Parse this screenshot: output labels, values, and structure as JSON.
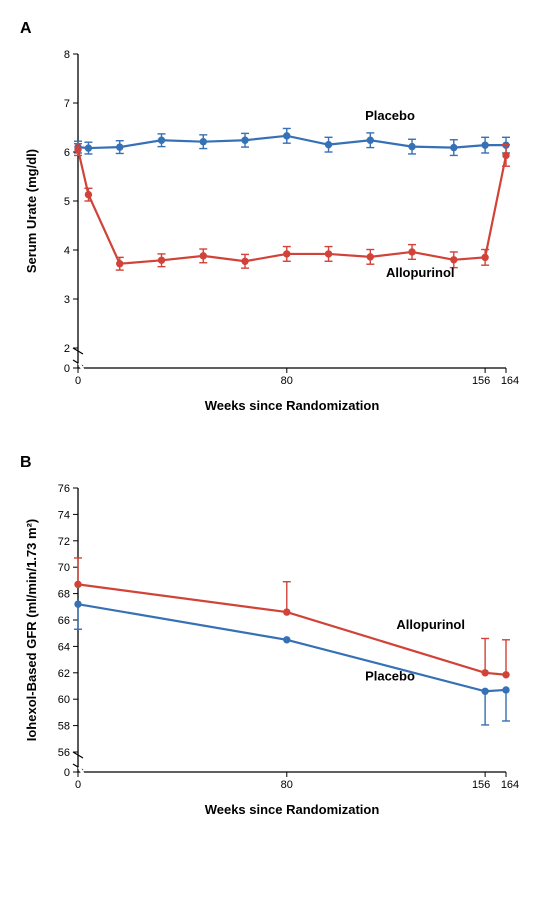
{
  "panelA": {
    "label": "A",
    "type": "line",
    "xlabel": "Weeks since Randomization",
    "ylabel": "Serum Urate (mg/dl)",
    "xlim": [
      0,
      164
    ],
    "ylim_broken": true,
    "y_break_from": 0,
    "y_break_to": 2,
    "ymax": 8,
    "xticks": [
      0,
      80,
      156,
      164
    ],
    "yticks": [
      0,
      2,
      3,
      4,
      5,
      6,
      7,
      8
    ],
    "background_color": "#ffffff",
    "axis_color": "#000000",
    "line_width": 2.2,
    "marker_radius": 3.2,
    "series": [
      {
        "name": "Placebo",
        "color": "#3670b5",
        "label_pos": {
          "x": 110,
          "y": 6.65
        },
        "x": [
          0,
          4,
          16,
          32,
          48,
          64,
          80,
          96,
          112,
          128,
          144,
          156,
          164
        ],
        "y": [
          6.1,
          6.08,
          6.1,
          6.24,
          6.21,
          6.24,
          6.33,
          6.15,
          6.24,
          6.11,
          6.09,
          6.14,
          6.14
        ],
        "err": [
          0.12,
          0.12,
          0.13,
          0.13,
          0.14,
          0.14,
          0.15,
          0.15,
          0.15,
          0.15,
          0.16,
          0.16,
          0.16
        ]
      },
      {
        "name": "Allopurinol",
        "color": "#d14338",
        "label_pos": {
          "x": 118,
          "y": 3.45
        },
        "x": [
          0,
          4,
          16,
          32,
          48,
          64,
          80,
          96,
          112,
          128,
          144,
          156,
          164
        ],
        "y": [
          6.05,
          5.13,
          3.72,
          3.79,
          3.88,
          3.77,
          3.92,
          3.92,
          3.86,
          3.96,
          3.8,
          3.85,
          5.93
        ],
        "err": [
          0.12,
          0.13,
          0.13,
          0.13,
          0.14,
          0.14,
          0.15,
          0.15,
          0.15,
          0.15,
          0.16,
          0.16,
          0.22
        ]
      }
    ]
  },
  "panelB": {
    "label": "B",
    "type": "line",
    "xlabel": "Weeks since Randomization",
    "ylabel": "Iohexol-Based GFR (ml/min/1.73 m²)",
    "xlim": [
      0,
      164
    ],
    "ylim_broken": true,
    "y_break_from": 0,
    "y_break_to": 56,
    "ymax": 76,
    "xticks": [
      0,
      80,
      156,
      164
    ],
    "yticks": [
      0,
      56,
      58,
      60,
      62,
      64,
      66,
      68,
      70,
      72,
      74,
      76
    ],
    "background_color": "#ffffff",
    "axis_color": "#000000",
    "line_width": 2.2,
    "marker_radius": 3.2,
    "series": [
      {
        "name": "Allopurinol",
        "color": "#d14338",
        "label_pos": {
          "x": 122,
          "y": 65.3
        },
        "x": [
          0,
          80,
          156,
          164
        ],
        "y": [
          68.7,
          66.6,
          62.0,
          61.85
        ],
        "err_lo": [
          0,
          0,
          0,
          0
        ],
        "err_hi": [
          2.0,
          2.3,
          2.6,
          2.65
        ]
      },
      {
        "name": "Placebo",
        "color": "#3670b5",
        "label_pos": {
          "x": 110,
          "y": 61.4
        },
        "x": [
          0,
          80,
          156,
          164
        ],
        "y": [
          67.2,
          64.5,
          60.6,
          60.7
        ],
        "err_lo": [
          1.9,
          0,
          2.55,
          2.35
        ],
        "err_hi": [
          0,
          0,
          0,
          0
        ]
      }
    ]
  }
}
